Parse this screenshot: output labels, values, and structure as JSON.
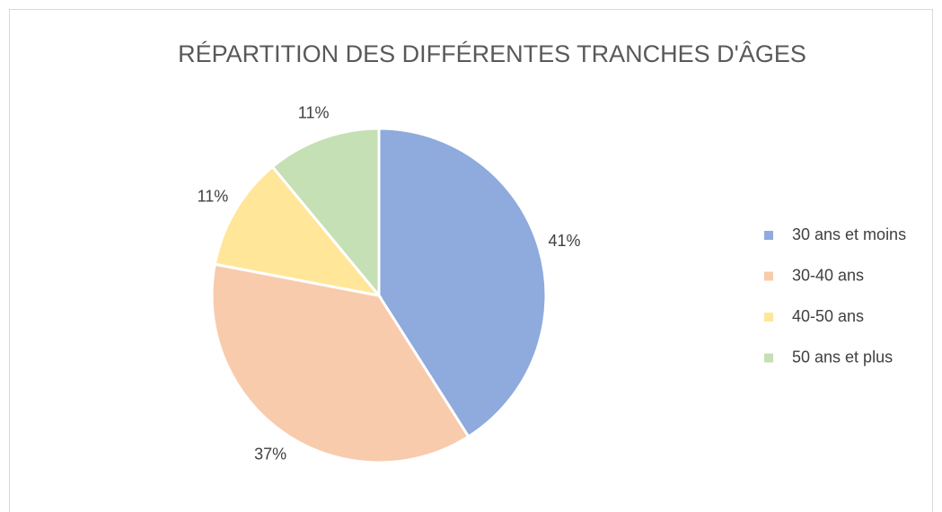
{
  "chart_data": {
    "type": "pie",
    "title": "RÉPARTITION DES DIFFÉRENTES TRANCHES D'ÂGES",
    "categories": [
      "30 ans et moins",
      "30-40 ans",
      "40-50 ans",
      "50 ans et plus"
    ],
    "values": [
      41,
      37,
      11,
      11
    ],
    "value_labels": [
      "41%",
      "37%",
      "11%",
      "11%"
    ],
    "colors": [
      "#8faadc",
      "#f8cbad",
      "#ffe699",
      "#c5e0b4"
    ],
    "legend": "right"
  }
}
